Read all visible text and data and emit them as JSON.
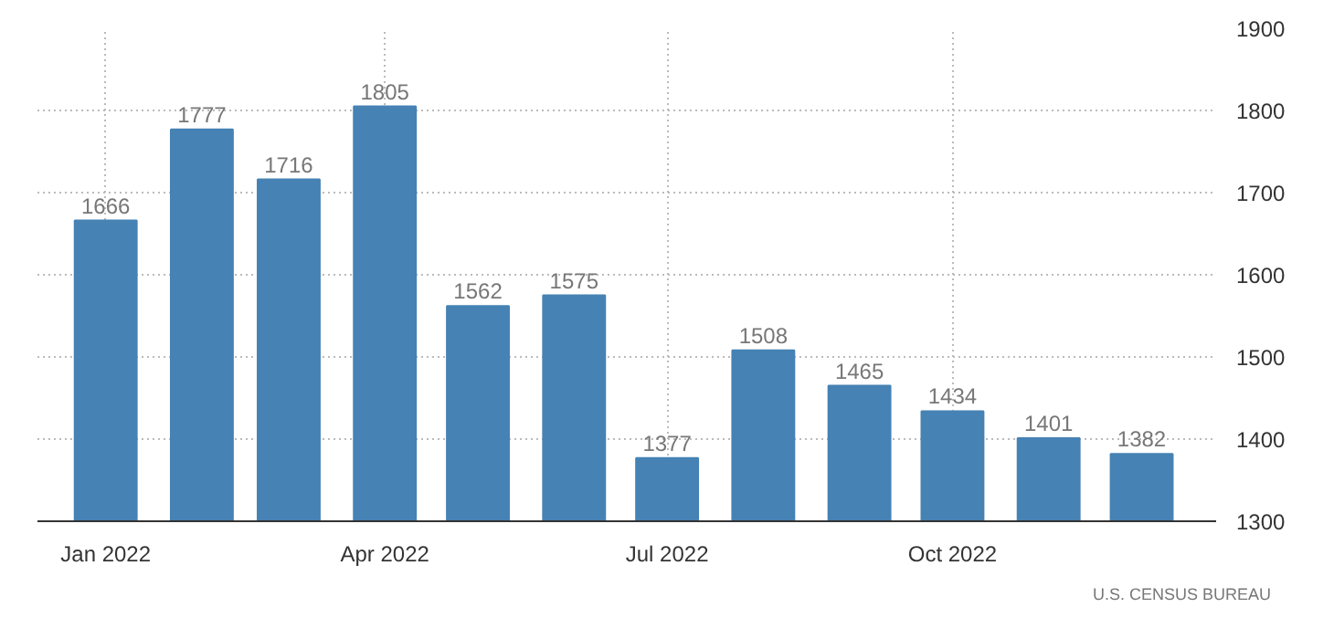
{
  "chart_data": {
    "type": "bar",
    "x": [
      "2022-01",
      "2022-02",
      "2022-03",
      "2022-04",
      "2022-05",
      "2022-06",
      "2022-07",
      "2022-08",
      "2022-09",
      "2022-10",
      "2022-11",
      "2022-12"
    ],
    "values": [
      1666,
      1777,
      1716,
      1805,
      1562,
      1575,
      1377,
      1508,
      1465,
      1434,
      1401,
      1382
    ],
    "color": "#4682b4",
    "data_labels": true,
    "xlim": [
      "2021-12-10",
      "2022-12-25"
    ],
    "xticks": [
      {
        "value": "2022-01",
        "label": "Jan 2022"
      },
      {
        "value": "2022-04",
        "label": "Apr 2022"
      },
      {
        "value": "2022-07",
        "label": "Jul 2022"
      },
      {
        "value": "2022-10",
        "label": "Oct 2022"
      }
    ],
    "ylim": [
      1300,
      1900
    ],
    "yticks": [
      1300,
      1400,
      1500,
      1600,
      1700,
      1800,
      1900
    ],
    "grid": true,
    "annotations": [
      "U.S. CENSUS BUREAU"
    ]
  }
}
